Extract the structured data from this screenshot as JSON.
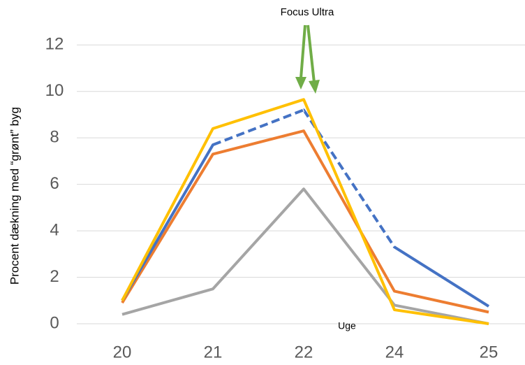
{
  "chart_data": {
    "type": "line",
    "y_label": "Procent dækning med “grønt” byg",
    "x_label": "Uge",
    "annotation": "Focus Ultra",
    "categories": [
      "20",
      "21",
      "22",
      "24",
      "25"
    ],
    "series": [
      {
        "color": "#a5a5a5",
        "values": [
          0.4,
          1.5,
          5.8,
          0.8,
          0.0
        ]
      },
      {
        "color": "#ed7d31",
        "values": [
          0.9,
          7.3,
          8.3,
          1.4,
          0.5
        ]
      },
      {
        "color": "#4472c4",
        "values": [
          1.0,
          7.7,
          9.2,
          3.3,
          0.75
        ],
        "dashed_segments": [
          1,
          2
        ]
      },
      {
        "color": "#ffc000",
        "values": [
          1.0,
          8.4,
          9.65,
          0.6,
          0.0
        ]
      }
    ],
    "ylim": [
      0,
      13
    ],
    "yticks": [
      0,
      2,
      4,
      6,
      8,
      10,
      12
    ],
    "grid": true
  }
}
